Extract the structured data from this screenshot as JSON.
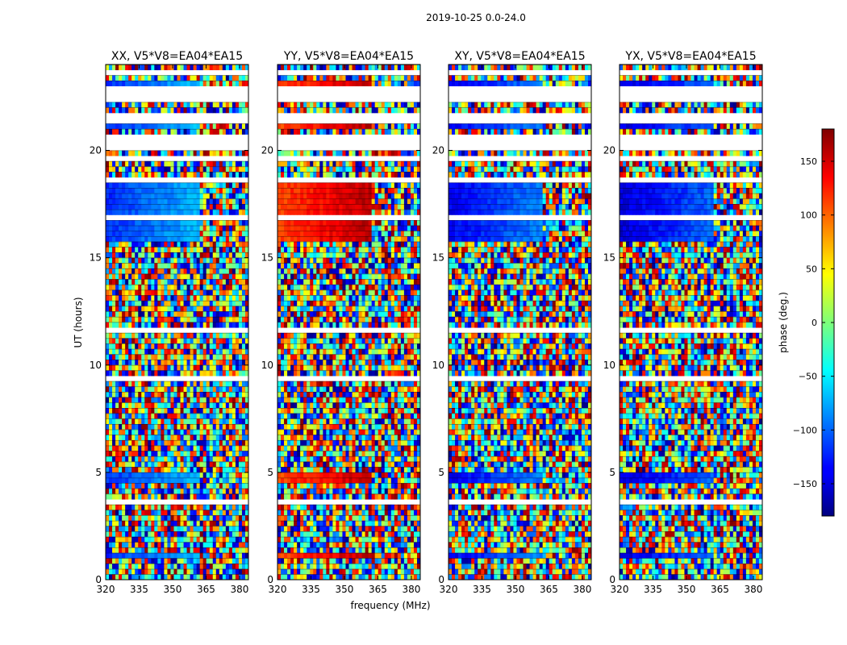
{
  "figure": {
    "suptitle": "2019-10-25 0.0-24.0"
  },
  "chart_data": {
    "type": "heatmap",
    "title": "2019-10-25 0.0-24.0",
    "xlabel": "frequency (MHz)",
    "ylabel": "UT (hours)",
    "xlim": [
      320,
      384
    ],
    "ylim": [
      0,
      24
    ],
    "xticks": [
      320,
      335,
      350,
      365,
      380
    ],
    "yticks": [
      0,
      5,
      10,
      15,
      20
    ],
    "panels": [
      {
        "name": "XX",
        "title": "XX, V5*V8=EA04*EA15",
        "coherent_offset_deg": -120
      },
      {
        "name": "YY",
        "title": "YY, V5*V8=EA04*EA15",
        "coherent_offset_deg": 110
      },
      {
        "name": "XY",
        "title": "XY, V5*V8=EA04*EA15",
        "coherent_offset_deg": -140
      },
      {
        "name": "YX",
        "title": "YX, V5*V8=EA04*EA15",
        "coherent_offset_deg": -150
      }
    ],
    "colorbar": {
      "label": "phase (deg.)",
      "range": [
        -180,
        180
      ],
      "ticks": [
        -150,
        -100,
        -50,
        0,
        50,
        100,
        150
      ],
      "colormap": "jet"
    },
    "coherent_bands_hours": [
      [
        0.9,
        1.2
      ],
      [
        4.4,
        5.0
      ],
      [
        15.8,
        16.7
      ],
      [
        17.1,
        18.4
      ],
      [
        20.9,
        21.2
      ],
      [
        23.0,
        23.3
      ]
    ],
    "gap_bands_hours": [
      [
        3.5,
        3.7
      ],
      [
        9.3,
        9.5
      ],
      [
        11.6,
        11.8
      ],
      [
        13.0,
        13.1
      ],
      [
        16.8,
        17.0
      ],
      [
        18.6,
        18.7
      ],
      [
        19.6,
        19.8
      ],
      [
        20.1,
        20.8
      ],
      [
        21.3,
        21.8
      ],
      [
        22.3,
        22.9
      ],
      [
        23.4,
        23.7
      ]
    ],
    "coherent_channel_limit_mhz": 362
  }
}
